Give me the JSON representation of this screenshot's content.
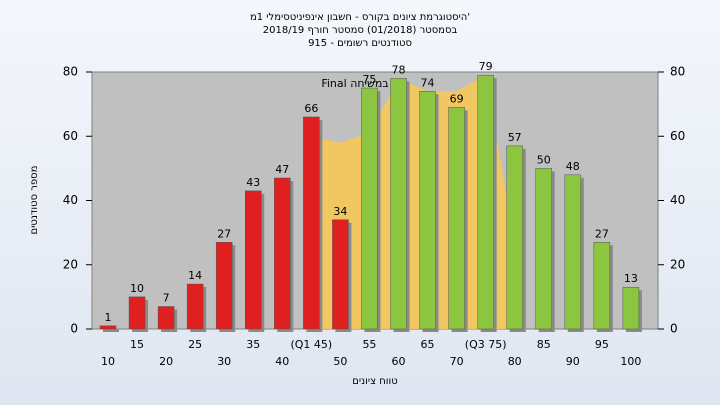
{
  "chart_data": {
    "type": "bar",
    "title": "היסטוגרמת ציונים בקורס - חשבון אינפיניטסימלי 1מ'",
    "subtitle": "בסמסטר (01/2018) סמסטר חורף 2018/19",
    "subtitle2": "סטודנטים רשומים - 915",
    "x_label": "טווח ציונים",
    "y_label": "מספר סטודנטים",
    "annotation": "Final במשיחה",
    "categories": [
      "10",
      "15",
      "20",
      "25",
      "30",
      "35",
      "40",
      "(Q1 45)",
      "50",
      "55",
      "60",
      "65",
      "70",
      "(Q3 75)",
      "80",
      "85",
      "90",
      "95",
      "100"
    ],
    "values": [
      1,
      10,
      7,
      14,
      27,
      43,
      47,
      66,
      34,
      75,
      78,
      74,
      69,
      79,
      57,
      50,
      48,
      27,
      13
    ],
    "colors": [
      "#e02020",
      "#e02020",
      "#e02020",
      "#e02020",
      "#e02020",
      "#e02020",
      "#e02020",
      "#e02020",
      "#e02020",
      "#8cc640",
      "#8cc640",
      "#8cc640",
      "#8cc640",
      "#8cc640",
      "#8cc640",
      "#8cc640",
      "#8cc640",
      "#8cc640",
      "#8cc640"
    ],
    "band": {
      "color": "#f8c850",
      "values": [
        null,
        null,
        null,
        null,
        null,
        null,
        null,
        60,
        58,
        61,
        78,
        74,
        74,
        79,
        27,
        null,
        null,
        null,
        null
      ]
    },
    "ylim": [
      0,
      80
    ],
    "yticks": [
      0,
      20,
      40,
      60,
      80
    ],
    "y2lim": [
      0,
      80
    ],
    "y2ticks": [
      0,
      20,
      40,
      60,
      80
    ]
  }
}
